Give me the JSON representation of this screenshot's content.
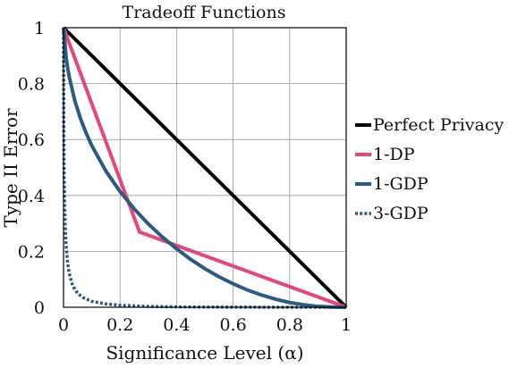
{
  "chart_data": {
    "type": "line",
    "title": "Tradeoff Functions",
    "xlabel": "Significance Level (α)",
    "ylabel": "Type II Error",
    "xlim": [
      0,
      1
    ],
    "ylim": [
      0,
      1
    ],
    "xticks": [
      "0",
      "0.2",
      "0.4",
      "0.6",
      "0.8",
      "1"
    ],
    "yticks": [
      "0",
      "0.2",
      "0.4",
      "0.6",
      "0.8",
      "1"
    ],
    "grid": true,
    "legend_position": "right",
    "series": [
      {
        "name": "Perfect Privacy",
        "color": "#000000",
        "style": "solid",
        "x": [
          0,
          1
        ],
        "y": [
          1,
          0
        ]
      },
      {
        "name": "1-DP",
        "color": "#e8467a",
        "style": "solid",
        "x": [
          0,
          0.269,
          1
        ],
        "y": [
          1,
          0.269,
          0
        ]
      },
      {
        "name": "1-GDP",
        "color": "#2c5a82",
        "style": "solid",
        "x": [
          0,
          0.01,
          0.02,
          0.04,
          0.06,
          0.08,
          0.1,
          0.15,
          0.2,
          0.25,
          0.3,
          0.35,
          0.4,
          0.45,
          0.5,
          0.55,
          0.6,
          0.65,
          0.7,
          0.75,
          0.8,
          0.85,
          0.9,
          0.95,
          0.98,
          1
        ],
        "y": [
          1,
          0.886,
          0.825,
          0.739,
          0.675,
          0.623,
          0.578,
          0.487,
          0.414,
          0.352,
          0.298,
          0.251,
          0.209,
          0.171,
          0.138,
          0.109,
          0.084,
          0.062,
          0.044,
          0.029,
          0.017,
          0.009,
          0.003,
          0.001,
          0.0,
          0
        ]
      },
      {
        "name": "3-GDP",
        "color": "#2c5a82",
        "style": "dotted",
        "x": [
          0,
          0.0005,
          0.001,
          0.002,
          0.004,
          0.006,
          0.008,
          0.01,
          0.015,
          0.02,
          0.03,
          0.04,
          0.05,
          0.07,
          0.1,
          0.15,
          0.2,
          0.3,
          0.4,
          0.5,
          0.7,
          1
        ],
        "y": [
          1,
          0.76,
          0.62,
          0.49,
          0.36,
          0.29,
          0.245,
          0.21,
          0.155,
          0.122,
          0.085,
          0.064,
          0.05,
          0.034,
          0.021,
          0.012,
          0.007,
          0.003,
          0.0015,
          0.0007,
          0.0002,
          0
        ]
      }
    ]
  }
}
